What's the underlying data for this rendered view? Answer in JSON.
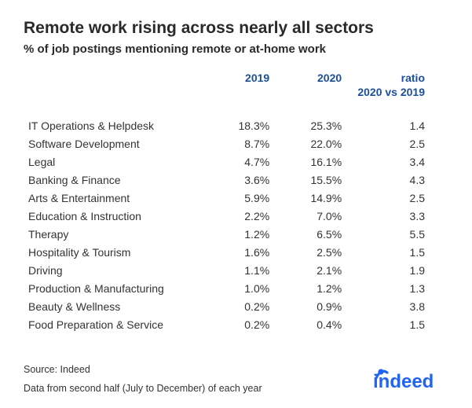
{
  "title": "Remote work rising across nearly all sectors",
  "subtitle": "% of job postings mentioning remote or at-home work",
  "columns": {
    "y2019": "2019",
    "y2020": "2020",
    "ratio_l1": "ratio",
    "ratio_l2": "2020 vs 2019"
  },
  "header_color": "#1b4f9c",
  "text_color": "#303030",
  "rows": [
    {
      "label": "IT Operations & Helpdesk",
      "y2019": "18.3%",
      "y2020": "25.3%",
      "ratio": "1.4"
    },
    {
      "label": "Software Development",
      "y2019": "8.7%",
      "y2020": "22.0%",
      "ratio": "2.5"
    },
    {
      "label": "Legal",
      "y2019": "4.7%",
      "y2020": "16.1%",
      "ratio": "3.4"
    },
    {
      "label": "Banking & Finance",
      "y2019": "3.6%",
      "y2020": "15.5%",
      "ratio": "4.3"
    },
    {
      "label": "Arts & Entertainment",
      "y2019": "5.9%",
      "y2020": "14.9%",
      "ratio": "2.5"
    },
    {
      "label": "Education & Instruction",
      "y2019": "2.2%",
      "y2020": "7.0%",
      "ratio": "3.3"
    },
    {
      "label": "Therapy",
      "y2019": "1.2%",
      "y2020": "6.5%",
      "ratio": "5.5"
    },
    {
      "label": "Hospitality & Tourism",
      "y2019": "1.6%",
      "y2020": "2.5%",
      "ratio": "1.5"
    },
    {
      "label": "Driving",
      "y2019": "1.1%",
      "y2020": "2.1%",
      "ratio": "1.9"
    },
    {
      "label": "Production & Manufacturing",
      "y2019": "1.0%",
      "y2020": "1.2%",
      "ratio": "1.3"
    },
    {
      "label": "Beauty & Wellness",
      "y2019": "0.2%",
      "y2020": "0.9%",
      "ratio": "3.8"
    },
    {
      "label": "Food Preparation & Service",
      "y2019": "0.2%",
      "y2020": "0.4%",
      "ratio": "1.5"
    }
  ],
  "source": "Source: Indeed",
  "note": "Data from second half (July to December) of each year",
  "logo": {
    "text": "indeed",
    "color": "#2164f3"
  }
}
